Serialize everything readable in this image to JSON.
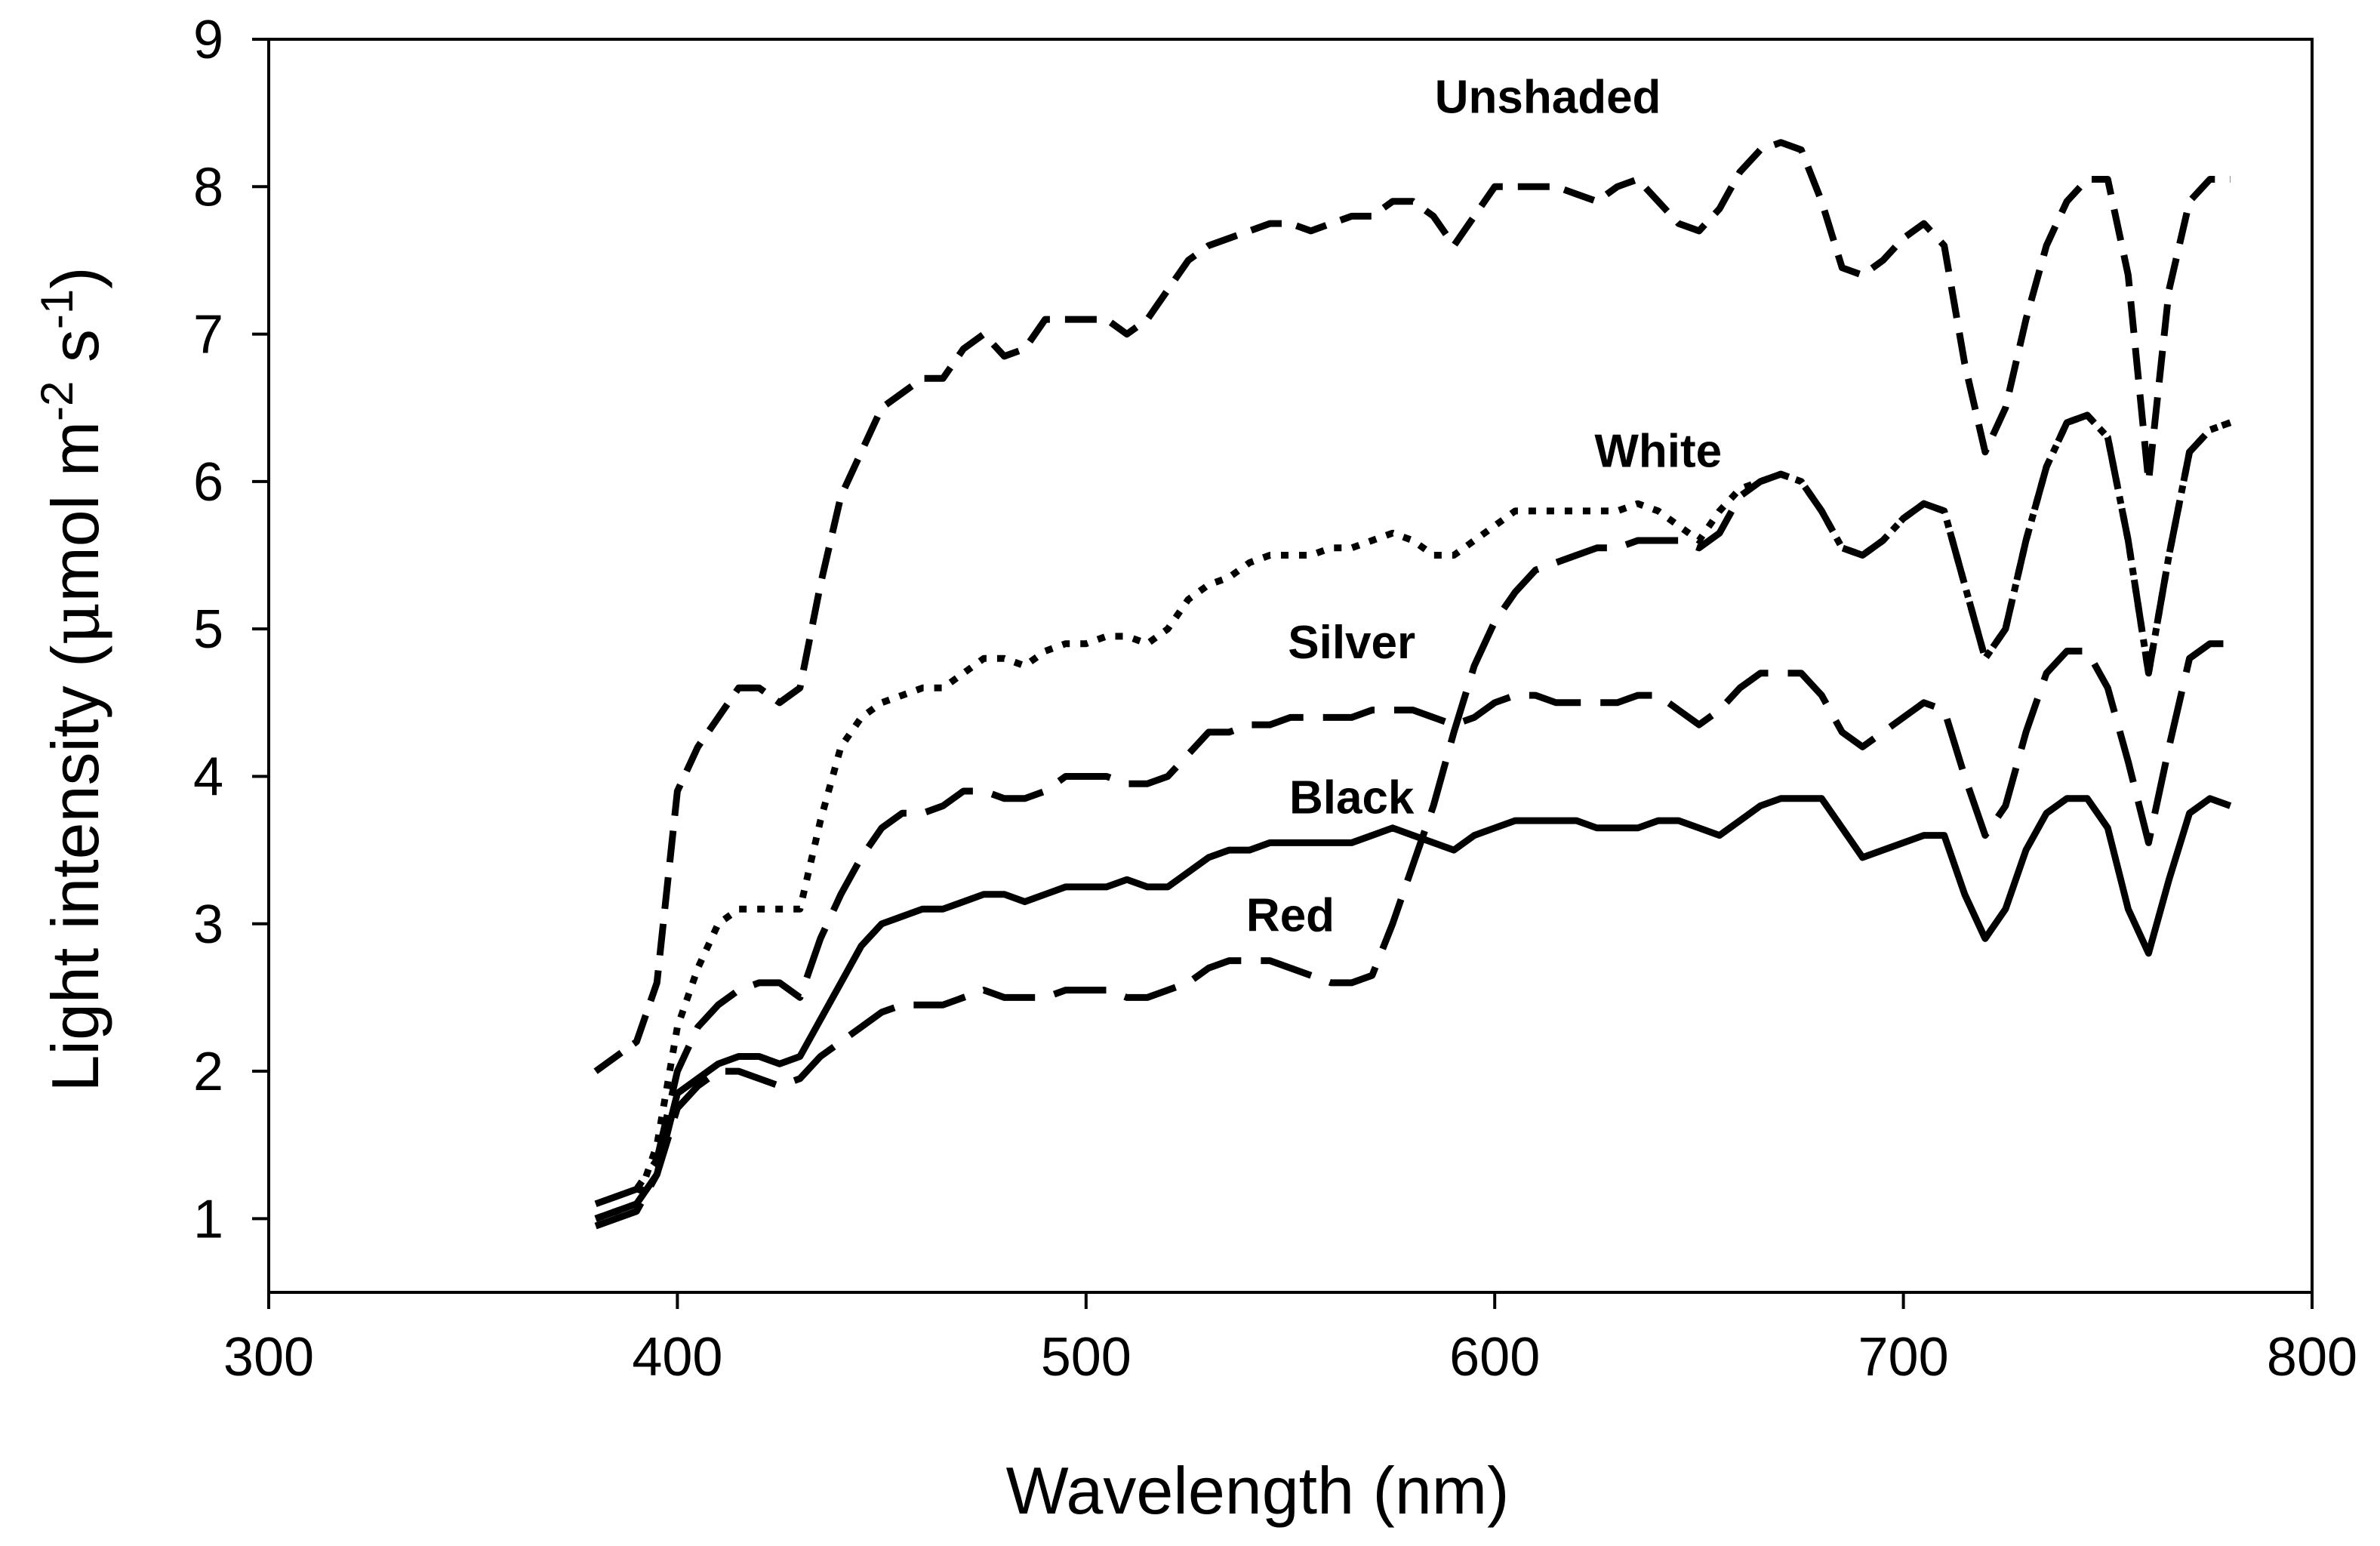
{
  "chart_data": {
    "type": "line",
    "title": "",
    "xlabel": "Wavelength (nm)",
    "ylabel_parts": {
      "main": "Light intensity (",
      "mu": "μ",
      "mol": "mol m",
      "exp1": "-2",
      "s": " s",
      "exp2": "-1",
      "close": ")"
    },
    "ylabel": "Light intensity (μmol m-2 s-1)",
    "xlim": [
      300,
      800
    ],
    "ylim": [
      0.5,
      9
    ],
    "xticks": [
      300,
      400,
      500,
      600,
      700,
      800
    ],
    "yticks": [
      1,
      2,
      3,
      4,
      5,
      6,
      7,
      8,
      9
    ],
    "xtick_labels": [
      "300",
      "400",
      "500",
      "600",
      "700",
      "800"
    ],
    "ytick_labels": [
      "1",
      "2",
      "3",
      "4",
      "5",
      "6",
      "7",
      "8",
      "9"
    ],
    "grid": false,
    "line_color": "#000000",
    "series": [
      {
        "name": "Unshaded",
        "dash": "dash",
        "label_at": [
          613,
          8.5
        ],
        "x": [
          380,
          390,
          395,
          400,
          405,
          410,
          415,
          420,
          425,
          430,
          435,
          440,
          445,
          450,
          455,
          460,
          465,
          470,
          475,
          480,
          485,
          490,
          495,
          500,
          505,
          510,
          515,
          520,
          525,
          530,
          535,
          540,
          545,
          550,
          555,
          560,
          565,
          570,
          575,
          580,
          585,
          590,
          595,
          600,
          605,
          610,
          615,
          620,
          625,
          630,
          635,
          640,
          645,
          650,
          655,
          660,
          665,
          670,
          675,
          680,
          685,
          690,
          695,
          700,
          705,
          710,
          715,
          720,
          725,
          730,
          735,
          740,
          745,
          750,
          755,
          760,
          765,
          770,
          775,
          780
        ],
        "values": [
          2.0,
          2.2,
          2.6,
          3.9,
          4.2,
          4.4,
          4.6,
          4.6,
          4.5,
          4.6,
          5.3,
          5.9,
          6.2,
          6.5,
          6.6,
          6.7,
          6.7,
          6.9,
          7.0,
          6.85,
          6.9,
          7.1,
          7.1,
          7.1,
          7.1,
          7.0,
          7.1,
          7.3,
          7.5,
          7.6,
          7.65,
          7.7,
          7.75,
          7.75,
          7.7,
          7.75,
          7.8,
          7.8,
          7.9,
          7.9,
          7.8,
          7.6,
          7.8,
          8.0,
          8.0,
          8.0,
          8.0,
          7.95,
          7.9,
          8.0,
          8.05,
          7.9,
          7.75,
          7.7,
          7.85,
          8.1,
          8.25,
          8.3,
          8.25,
          7.9,
          7.45,
          7.4,
          7.5,
          7.65,
          7.75,
          7.6,
          6.8,
          6.2,
          6.5,
          7.1,
          7.6,
          7.9,
          8.05,
          8.05,
          7.4,
          6.0,
          7.3,
          7.9,
          8.05,
          8.05
        ]
      },
      {
        "name": "White",
        "dash": "dashdot",
        "label_at": [
          640,
          6.1
        ],
        "x": [
          380,
          385,
          390,
          395,
          400,
          405,
          410,
          415,
          420,
          425,
          430,
          435,
          440,
          445,
          450,
          455,
          460,
          465,
          470,
          475,
          480,
          485,
          490,
          495,
          500,
          505,
          510,
          515,
          520,
          525,
          530,
          535,
          540,
          545,
          550,
          555,
          560,
          565,
          570,
          575,
          580,
          585,
          590,
          595,
          600,
          605,
          610,
          615,
          620,
          625,
          630,
          635,
          640,
          645,
          650,
          655,
          660,
          665,
          670,
          675,
          680,
          685,
          690,
          695,
          700,
          705,
          710,
          715,
          720,
          725,
          730,
          735,
          740,
          745,
          750,
          755,
          760,
          765,
          770,
          775,
          780
        ],
        "values": [
          1.0,
          1.05,
          1.1,
          1.5,
          2.3,
          2.7,
          3.0,
          3.1,
          3.1,
          3.1,
          3.1,
          3.7,
          4.2,
          4.4,
          4.5,
          4.55,
          4.6,
          4.6,
          4.7,
          4.8,
          4.8,
          4.75,
          4.85,
          4.9,
          4.9,
          4.95,
          4.95,
          4.9,
          5.0,
          5.2,
          5.3,
          5.35,
          5.45,
          5.5,
          5.5,
          5.5,
          5.55,
          5.55,
          5.6,
          5.65,
          5.6,
          5.5,
          5.5,
          5.6,
          5.7,
          5.8,
          5.8,
          5.8,
          5.8,
          5.8,
          5.8,
          5.85,
          5.8,
          5.7,
          5.6,
          5.8,
          5.95,
          6.0,
          6.05,
          6.0,
          5.8,
          5.55,
          5.5,
          5.6,
          5.75,
          5.85,
          5.8,
          5.3,
          4.8,
          5.0,
          5.6,
          6.1,
          6.4,
          6.45,
          6.3,
          5.6,
          4.7,
          5.5,
          6.2,
          6.35,
          6.4
        ]
      },
      {
        "name": "Silver",
        "dash": "longdash",
        "label_at": [
          565,
          4.8
        ],
        "x": [
          380,
          385,
          390,
          395,
          400,
          405,
          410,
          415,
          420,
          425,
          430,
          435,
          440,
          445,
          450,
          455,
          460,
          465,
          470,
          475,
          480,
          485,
          490,
          495,
          500,
          505,
          510,
          515,
          520,
          525,
          530,
          535,
          540,
          545,
          550,
          555,
          560,
          565,
          570,
          575,
          580,
          585,
          590,
          595,
          600,
          605,
          610,
          615,
          620,
          625,
          630,
          635,
          640,
          645,
          650,
          655,
          660,
          665,
          670,
          675,
          680,
          685,
          690,
          695,
          700,
          705,
          710,
          715,
          720,
          725,
          730,
          735,
          740,
          745,
          750,
          755,
          760,
          765,
          770,
          775,
          780
        ],
        "values": [
          1.1,
          1.15,
          1.2,
          1.4,
          2.0,
          2.3,
          2.45,
          2.55,
          2.6,
          2.6,
          2.5,
          2.9,
          3.2,
          3.45,
          3.65,
          3.75,
          3.75,
          3.8,
          3.9,
          3.9,
          3.85,
          3.85,
          3.9,
          4.0,
          4.0,
          4.0,
          3.95,
          3.95,
          4.0,
          4.15,
          4.3,
          4.3,
          4.35,
          4.35,
          4.4,
          4.4,
          4.4,
          4.4,
          4.45,
          4.45,
          4.45,
          4.4,
          4.35,
          4.4,
          4.5,
          4.55,
          4.55,
          4.5,
          4.5,
          4.5,
          4.5,
          4.55,
          4.55,
          4.45,
          4.35,
          4.45,
          4.6,
          4.7,
          4.7,
          4.7,
          4.55,
          4.3,
          4.2,
          4.3,
          4.4,
          4.5,
          4.45,
          4.0,
          3.6,
          3.8,
          4.3,
          4.7,
          4.85,
          4.85,
          4.6,
          4.1,
          3.55,
          4.2,
          4.8,
          4.9,
          4.9
        ]
      },
      {
        "name": "Black",
        "dash": "solid",
        "label_at": [
          565,
          3.75
        ],
        "x": [
          380,
          385,
          390,
          395,
          400,
          405,
          410,
          415,
          420,
          425,
          430,
          435,
          440,
          445,
          450,
          455,
          460,
          465,
          470,
          475,
          480,
          485,
          490,
          495,
          500,
          505,
          510,
          515,
          520,
          525,
          530,
          535,
          540,
          545,
          550,
          555,
          560,
          565,
          570,
          575,
          580,
          585,
          590,
          595,
          600,
          605,
          610,
          615,
          620,
          625,
          630,
          635,
          640,
          645,
          650,
          655,
          660,
          665,
          670,
          675,
          680,
          685,
          690,
          695,
          700,
          705,
          710,
          715,
          720,
          725,
          730,
          735,
          740,
          745,
          750,
          755,
          760,
          765,
          770,
          775,
          780
        ],
        "values": [
          1.0,
          1.05,
          1.1,
          1.3,
          1.85,
          1.95,
          2.05,
          2.1,
          2.1,
          2.05,
          2.1,
          2.35,
          2.6,
          2.85,
          3.0,
          3.05,
          3.1,
          3.1,
          3.15,
          3.2,
          3.2,
          3.15,
          3.2,
          3.25,
          3.25,
          3.25,
          3.3,
          3.25,
          3.25,
          3.35,
          3.45,
          3.5,
          3.5,
          3.55,
          3.55,
          3.55,
          3.55,
          3.55,
          3.6,
          3.65,
          3.6,
          3.55,
          3.5,
          3.6,
          3.65,
          3.7,
          3.7,
          3.7,
          3.7,
          3.65,
          3.65,
          3.65,
          3.7,
          3.7,
          3.65,
          3.6,
          3.7,
          3.8,
          3.85,
          3.85,
          3.85,
          3.65,
          3.45,
          3.5,
          3.55,
          3.6,
          3.6,
          3.2,
          2.9,
          3.1,
          3.5,
          3.75,
          3.85,
          3.85,
          3.65,
          3.1,
          2.8,
          3.3,
          3.75,
          3.85,
          3.8
        ]
      },
      {
        "name": "Red",
        "dash": "longdash",
        "label_at": [
          550,
          2.95
        ],
        "x": [
          380,
          385,
          390,
          395,
          400,
          405,
          410,
          415,
          420,
          425,
          430,
          435,
          440,
          445,
          450,
          455,
          460,
          465,
          470,
          475,
          480,
          485,
          490,
          495,
          500,
          505,
          510,
          515,
          520,
          525,
          530,
          535,
          540,
          545,
          550,
          555,
          560,
          565,
          570,
          575,
          580,
          585,
          590,
          595,
          600,
          605,
          610,
          615,
          620,
          625,
          630,
          635,
          640,
          645,
          650,
          655,
          660,
          665,
          670,
          675,
          680,
          685,
          690,
          695,
          700,
          705,
          710,
          715,
          720,
          725,
          730,
          735,
          740,
          745,
          750,
          755,
          760,
          765,
          770,
          775,
          780
        ],
        "values": [
          0.95,
          1.0,
          1.05,
          1.3,
          1.75,
          1.9,
          2.0,
          2.0,
          1.95,
          1.9,
          1.95,
          2.1,
          2.2,
          2.3,
          2.4,
          2.45,
          2.45,
          2.45,
          2.5,
          2.55,
          2.5,
          2.5,
          2.5,
          2.55,
          2.55,
          2.55,
          2.5,
          2.5,
          2.55,
          2.6,
          2.7,
          2.75,
          2.75,
          2.75,
          2.7,
          2.65,
          2.6,
          2.6,
          2.65,
          3.0,
          3.4,
          3.8,
          4.3,
          4.75,
          5.05,
          5.25,
          5.4,
          5.45,
          5.5,
          5.55,
          5.55,
          5.6,
          5.6,
          5.6,
          5.55,
          5.65,
          5.9,
          6.0,
          6.05,
          6.0,
          5.8,
          5.55,
          5.5,
          5.6,
          5.75,
          5.85,
          5.8,
          5.3,
          4.8,
          5.0,
          5.6,
          6.1,
          6.4,
          6.45,
          6.3,
          5.6,
          4.7,
          5.5,
          6.2,
          6.35,
          6.4
        ]
      }
    ]
  }
}
